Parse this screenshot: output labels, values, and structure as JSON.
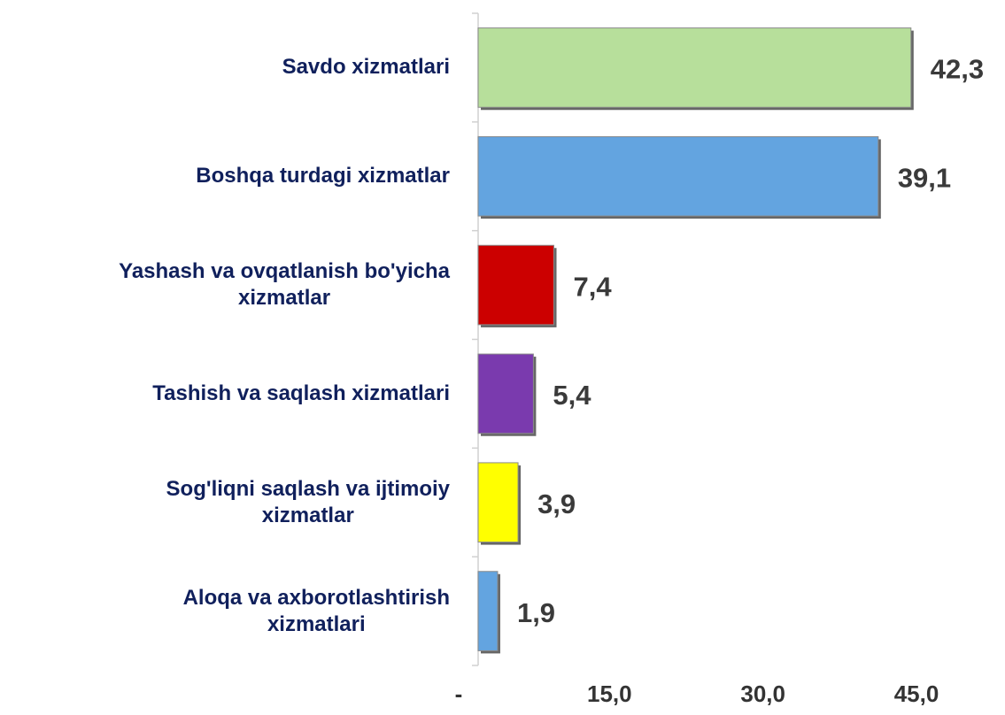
{
  "chart_data": {
    "type": "hbar",
    "categories": [
      "Savdo xizmatlari",
      "Boshqa turdagi xizmatlar",
      "Yashash va ovqatlanish bo'yicha\nxizmatlar",
      "Tashish va saqlash xizmatlari",
      "Sog'liqni saqlash va ijtimoiy\nxizmatlar",
      "Aloqa va axborotlashtirish\nxizmatlari"
    ],
    "values": [
      42.3,
      39.1,
      7.4,
      5.4,
      3.9,
      1.9
    ],
    "value_labels": [
      "42,3",
      "39,1",
      "7,4",
      "5,4",
      "3,9",
      "1,9"
    ],
    "colors": [
      "#b7df9b",
      "#63a4e0",
      "#cc0000",
      "#7a3aae",
      "#ffff00",
      "#63a4e0"
    ],
    "xlim": [
      0,
      45
    ],
    "xticks": [
      {
        "value": 0,
        "label": "-"
      },
      {
        "value": 15,
        "label": "15,0"
      },
      {
        "value": 30,
        "label": "30,0"
      },
      {
        "value": 45,
        "label": "45,0"
      }
    ]
  }
}
